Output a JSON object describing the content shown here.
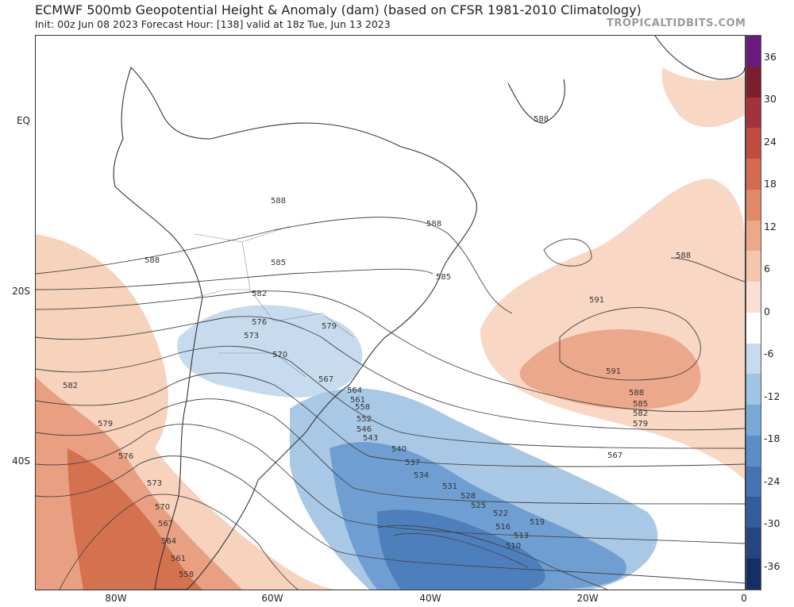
{
  "header": {
    "title": "ECMWF 500mb Geopotential Height & Anomaly (dam) (based on CFSR 1981-2010 Climatology)",
    "subtitle": "Init: 00z Jun 08 2023   Forecast Hour: [138]   valid at 18z Tue, Jun 13 2023",
    "credit": "TROPICALTIDBITS.COM"
  },
  "axes": {
    "lat_labels": [
      "EQ",
      "20S",
      "40S"
    ],
    "lon_labels": [
      "80W",
      "60W",
      "40W",
      "20W",
      "0"
    ]
  },
  "colorbar": {
    "ticks": [
      "36",
      "30",
      "24",
      "18",
      "12",
      "6",
      "0",
      "-6",
      "-12",
      "-18",
      "-24",
      "-30",
      "-36"
    ],
    "colors": [
      "#6a1b80",
      "#7a1f2b",
      "#a3323b",
      "#c24a3f",
      "#d46a4f",
      "#e08a6a",
      "#eca88a",
      "#f5c6ad",
      "#fae0d2",
      "#ffffff",
      "#c6dcee",
      "#9fc4e4",
      "#78a9d6",
      "#5a8ec8",
      "#4474b4",
      "#335c9c",
      "#244580",
      "#172e62"
    ]
  },
  "contour_labels": {
    "west": [
      "588",
      "585",
      "582",
      "579",
      "576",
      "573",
      "570",
      "567",
      "564",
      "561",
      "558",
      "552",
      "546",
      "543"
    ],
    "ocean": [
      "540",
      "537",
      "534",
      "531",
      "528",
      "525",
      "522",
      "519",
      "516",
      "513",
      "510"
    ],
    "east": [
      "591",
      "588",
      "585",
      "582",
      "579",
      "567",
      "591",
      "588",
      "588",
      "585",
      "588",
      "588"
    ],
    "southwest": [
      "582",
      "579",
      "576",
      "573",
      "570",
      "567",
      "564",
      "561",
      "558"
    ]
  }
}
